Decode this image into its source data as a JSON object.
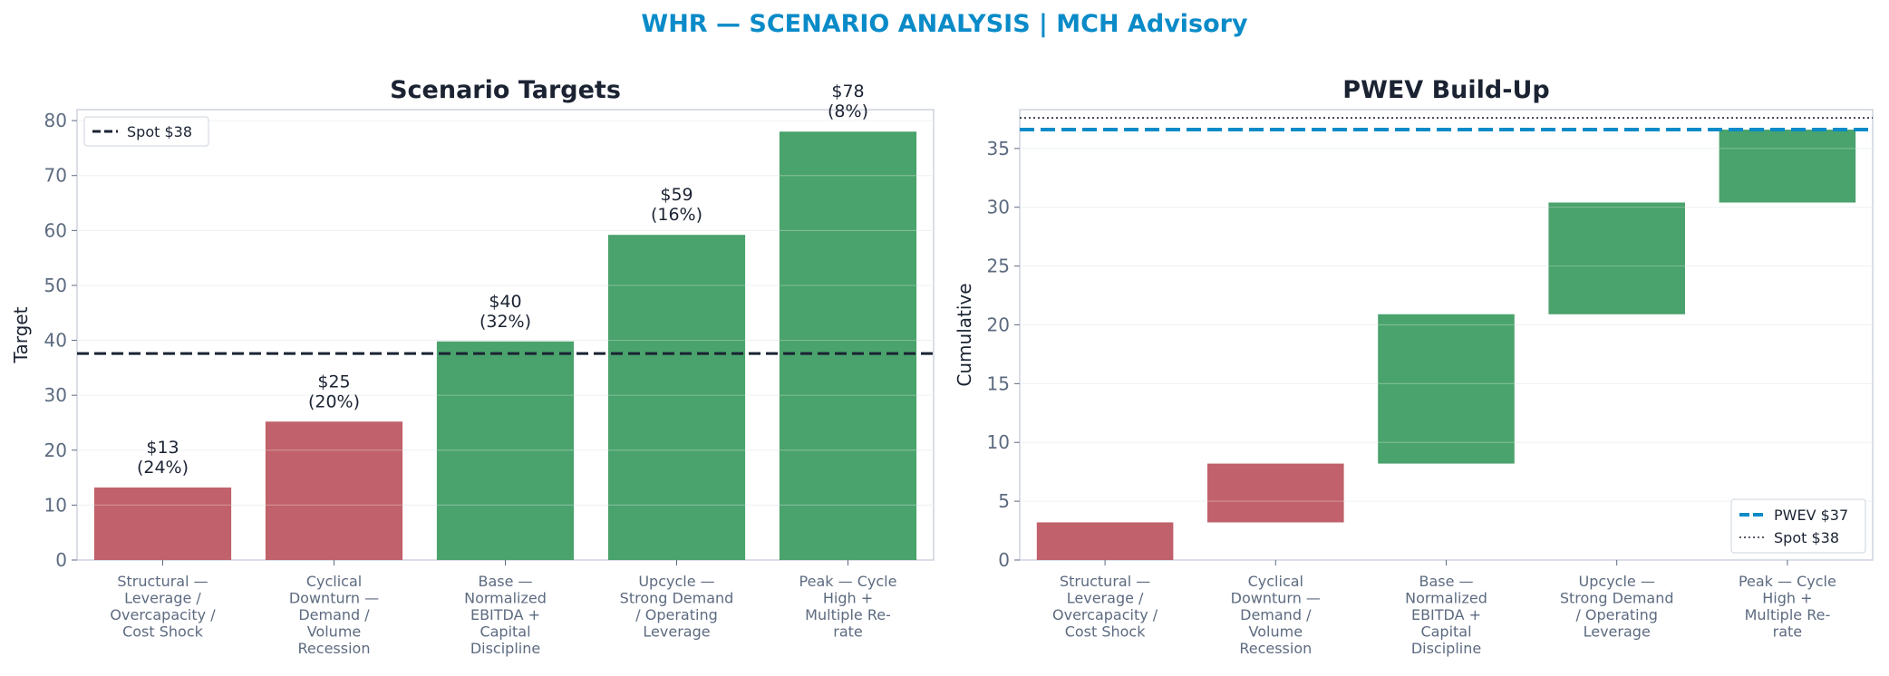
{
  "suptitle": "WHR — SCENARIO ANALYSIS | MCH Advisory",
  "colors": {
    "title": "#0a8bc8",
    "down": "#c0616b",
    "up": "#4aa26c",
    "pwev": "#0a8bc8",
    "spot": "#1b2333",
    "axis_text": "#5d6b80",
    "frame": "#cdd3dd",
    "grid": "#edf0f4",
    "heading": "#1b2333"
  },
  "chart_data": [
    {
      "type": "bar",
      "title": "Scenario Targets",
      "xlabel": "",
      "ylabel": "Target",
      "ylim": [
        0,
        82
      ],
      "yticks": [
        0,
        10,
        20,
        30,
        40,
        50,
        60,
        70,
        80
      ],
      "grid": true,
      "categories": [
        [
          "Structural —",
          "Leverage /",
          "Overcapacity /",
          "Cost Shock"
        ],
        [
          "Cyclical",
          "Downturn —",
          "Demand /",
          "Volume",
          "Recession"
        ],
        [
          "Base —",
          "Normalized",
          "EBITDA +",
          "Capital",
          "Discipline"
        ],
        [
          "Upcycle —",
          "Strong Demand",
          "/ Operating",
          "Leverage"
        ],
        [
          "Peak — Cycle",
          "High +",
          "Multiple Re-",
          "rate"
        ]
      ],
      "values": [
        13.2,
        25.2,
        39.8,
        59.2,
        78.0
      ],
      "bar_labels": [
        [
          "$13",
          "(24%)"
        ],
        [
          "$25",
          "(20%)"
        ],
        [
          "$40",
          "(32%)"
        ],
        [
          "$59",
          "(16%)"
        ],
        [
          "$78",
          "(8%)"
        ]
      ],
      "bar_signs": [
        "down",
        "down",
        "up",
        "up",
        "up"
      ],
      "reference_lines": [
        {
          "name": "Spot $38",
          "value": 37.6,
          "style": "dashed"
        }
      ],
      "legend": {
        "placement": "top-left",
        "entries": [
          "Spot $38"
        ]
      }
    },
    {
      "type": "waterfall",
      "title": "PWEV Build-Up",
      "xlabel": "",
      "ylabel": "Cumulative",
      "ylim": [
        0,
        38.3
      ],
      "yticks": [
        0,
        5,
        10,
        15,
        20,
        25,
        30,
        35
      ],
      "grid": true,
      "categories": [
        [
          "Structural —",
          "Leverage /",
          "Overcapacity /",
          "Cost Shock"
        ],
        [
          "Cyclical",
          "Downturn —",
          "Demand /",
          "Volume",
          "Recession"
        ],
        [
          "Base —",
          "Normalized",
          "EBITDA +",
          "Capital",
          "Discipline"
        ],
        [
          "Upcycle —",
          "Strong Demand",
          "/ Operating",
          "Leverage"
        ],
        [
          "Peak — Cycle",
          "High +",
          "Multiple Re-",
          "rate"
        ]
      ],
      "steps": [
        {
          "start": 0,
          "end": 3.2
        },
        {
          "start": 3.2,
          "end": 8.2
        },
        {
          "start": 8.2,
          "end": 20.9
        },
        {
          "start": 20.9,
          "end": 30.4
        },
        {
          "start": 30.4,
          "end": 36.6
        }
      ],
      "bar_signs": [
        "down",
        "down",
        "up",
        "up",
        "up"
      ],
      "reference_lines": [
        {
          "name": "PWEV $37",
          "value": 36.6,
          "style": "dashed"
        },
        {
          "name": "Spot $38",
          "value": 37.6,
          "style": "dotted"
        }
      ],
      "legend": {
        "placement": "bottom-right",
        "entries": [
          "PWEV $37",
          "Spot $38"
        ]
      }
    }
  ]
}
